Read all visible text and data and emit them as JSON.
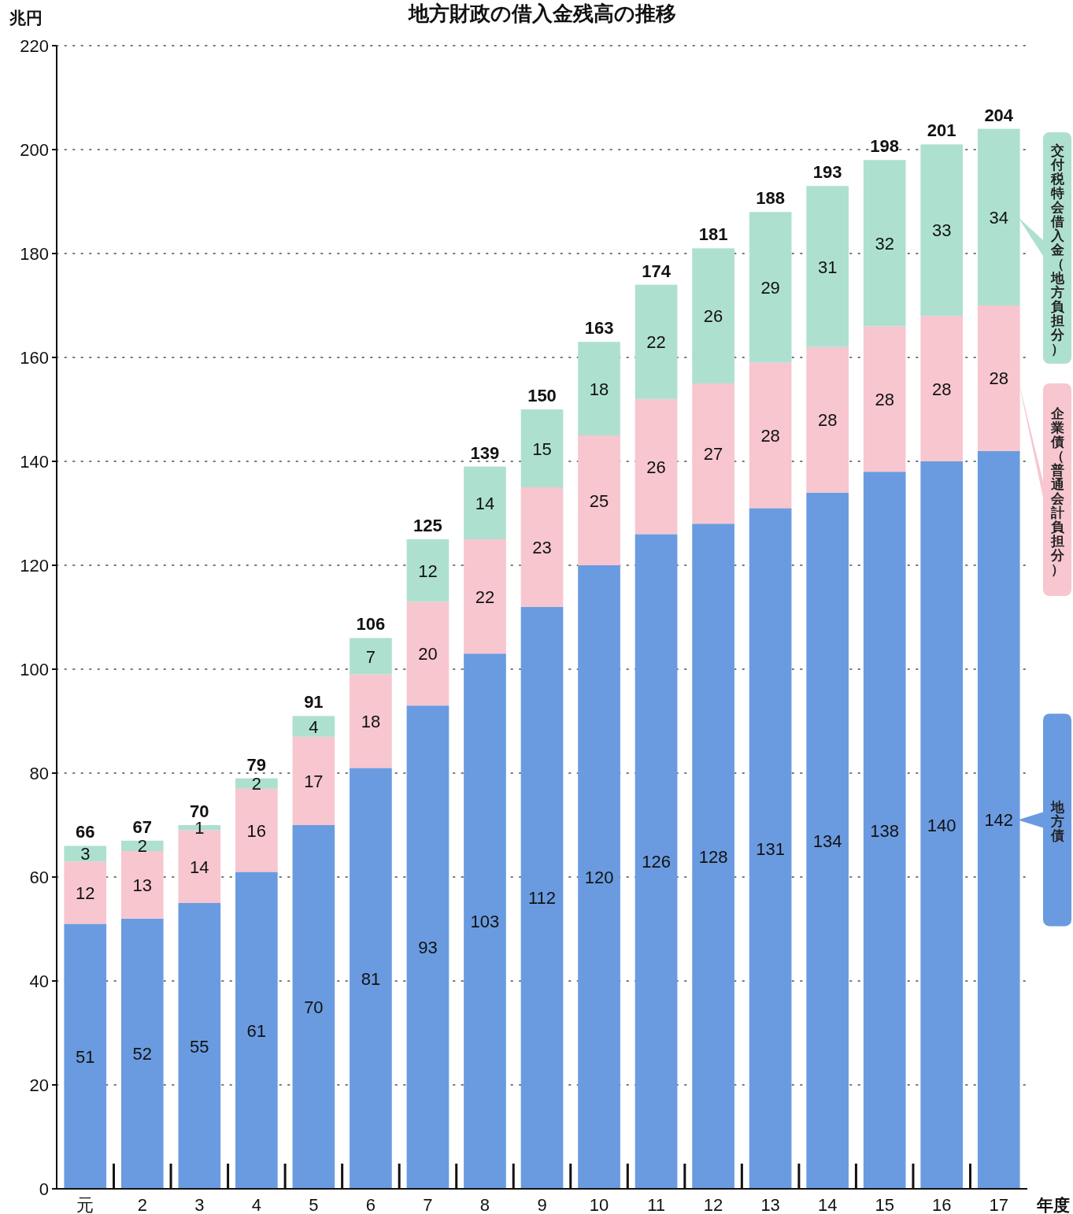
{
  "chart_data": {
    "type": "bar",
    "stacked": true,
    "title": "地方財政の借入金残高の推移",
    "ylabel": "兆円",
    "xlabel": "年度",
    "categories": [
      "元",
      "2",
      "3",
      "4",
      "5",
      "6",
      "7",
      "8",
      "9",
      "10",
      "11",
      "12",
      "13",
      "14",
      "15",
      "16",
      "17"
    ],
    "series": [
      {
        "name": "地方債",
        "color": "#6a9be0",
        "values": [
          51,
          52,
          55,
          61,
          70,
          81,
          93,
          103,
          112,
          120,
          126,
          128,
          131,
          134,
          138,
          140,
          142
        ]
      },
      {
        "name": "企業債（普通会計負担分）",
        "color": "#f7c6cf",
        "values": [
          12,
          13,
          14,
          16,
          17,
          18,
          20,
          22,
          23,
          25,
          26,
          27,
          28,
          28,
          28,
          28,
          28
        ]
      },
      {
        "name": "交付税特会借入金（地方負担分）",
        "color": "#aee0d0",
        "values": [
          3,
          2,
          1,
          2,
          4,
          7,
          12,
          14,
          15,
          18,
          22,
          26,
          29,
          31,
          32,
          33,
          34
        ]
      }
    ],
    "totals": [
      "66",
      "67",
      "70",
      "79",
      "91",
      "106",
      "125",
      "139",
      "150",
      "163",
      "174",
      "181",
      "188",
      "193",
      "198",
      "201",
      "204"
    ],
    "data_labels": true,
    "ylim": [
      0,
      220
    ],
    "yticks": [
      0,
      20,
      40,
      60,
      80,
      100,
      120,
      140,
      160,
      180,
      200,
      220
    ],
    "grid": "y",
    "legend": "right"
  }
}
